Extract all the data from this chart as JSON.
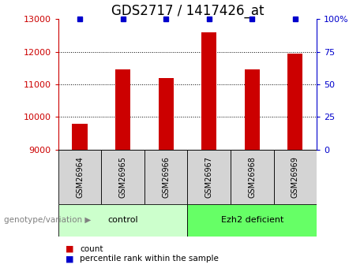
{
  "title": "GDS2717 / 1417426_at",
  "samples": [
    "GSM26964",
    "GSM26965",
    "GSM26966",
    "GSM26967",
    "GSM26968",
    "GSM26969"
  ],
  "counts": [
    9800,
    11450,
    11200,
    12600,
    11450,
    11950
  ],
  "percentiles": [
    100,
    100,
    100,
    100,
    100,
    100
  ],
  "ylim_left": [
    9000,
    13000
  ],
  "ylim_right": [
    0,
    100
  ],
  "yticks_left": [
    9000,
    10000,
    11000,
    12000,
    13000
  ],
  "yticks_right": [
    0,
    25,
    50,
    75,
    100
  ],
  "yticklabels_right": [
    "0",
    "25",
    "50",
    "75",
    "100%"
  ],
  "bar_color": "#cc0000",
  "percentile_color": "#0000cc",
  "groups": [
    {
      "label": "control",
      "indices": [
        0,
        1,
        2
      ],
      "color": "#ccffcc"
    },
    {
      "label": "Ezh2 deficient",
      "indices": [
        3,
        4,
        5
      ],
      "color": "#66ff66"
    }
  ],
  "group_label": "genotype/variation",
  "legend_items": [
    {
      "label": "count",
      "color": "#cc0000"
    },
    {
      "label": "percentile rank within the sample",
      "color": "#0000cc"
    }
  ],
  "bar_width": 0.35,
  "dotted_grid_color": "#000000",
  "background_color": "#ffffff",
  "plot_bg_color": "#ffffff",
  "title_fontsize": 12,
  "tick_fontsize": 8,
  "sample_label_fontsize": 7,
  "group_label_fontsize": 8
}
